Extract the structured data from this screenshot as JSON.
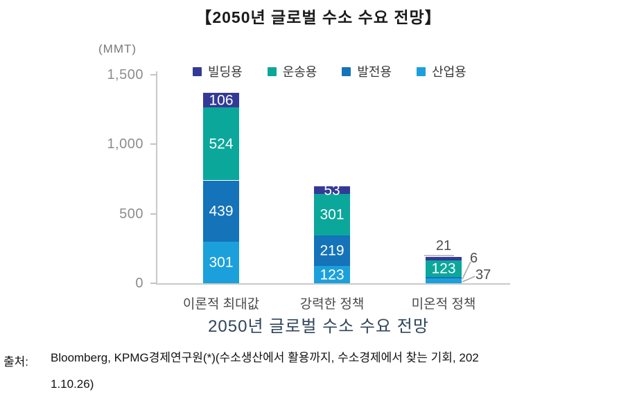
{
  "title": "【2050년 글로벌 수소 수요 전망】",
  "caption": "2050년 글로벌 수소 수요 전망",
  "source": {
    "label": "출처:",
    "line1": "Bloomberg, KPMG경제연구원(*)(수소생산에서 활용까지, 수소경제에서 찾는 기회, 202",
    "line2": "1.10.26)"
  },
  "chart_data": {
    "type": "bar",
    "stacked": true,
    "title": "2050년 글로벌 수소 수요 전망",
    "unit_label": "(MMT)",
    "ylim": [
      0,
      1500
    ],
    "yticks": [
      {
        "value": 1500,
        "label": "1,500"
      },
      {
        "value": 1000,
        "label": "1,000"
      },
      {
        "value": 500,
        "label": "500"
      },
      {
        "value": 0,
        "label": "0"
      }
    ],
    "categories": [
      "이론적 최대값",
      "강력한 정책",
      "미온적 정책"
    ],
    "legend_order": [
      "빌딩용",
      "운송용",
      "발전용",
      "산업용"
    ],
    "series": [
      {
        "name": "산업용",
        "color": "#1CA0DB",
        "values": [
          301,
          123,
          37
        ]
      },
      {
        "name": "발전용",
        "color": "#1473B9",
        "values": [
          439,
          219,
          6
        ]
      },
      {
        "name": "운송용",
        "color": "#0CA79B",
        "values": [
          524,
          301,
          123
        ]
      },
      {
        "name": "빌딩용",
        "color": "#333A96",
        "values": [
          106,
          53,
          21
        ]
      }
    ],
    "totals": [
      1370,
      696,
      187
    ],
    "label_placements": [
      [
        "inside",
        "inside",
        "inside",
        "inside"
      ],
      [
        "inside",
        "inside",
        "inside",
        "inside"
      ],
      [
        "callout",
        "callout",
        "inside",
        "above"
      ]
    ],
    "legend_colors": {
      "빌딩용": "#333A96",
      "운송용": "#0CA79B",
      "발전용": "#1473B9",
      "산업용": "#1CA0DB"
    }
  }
}
